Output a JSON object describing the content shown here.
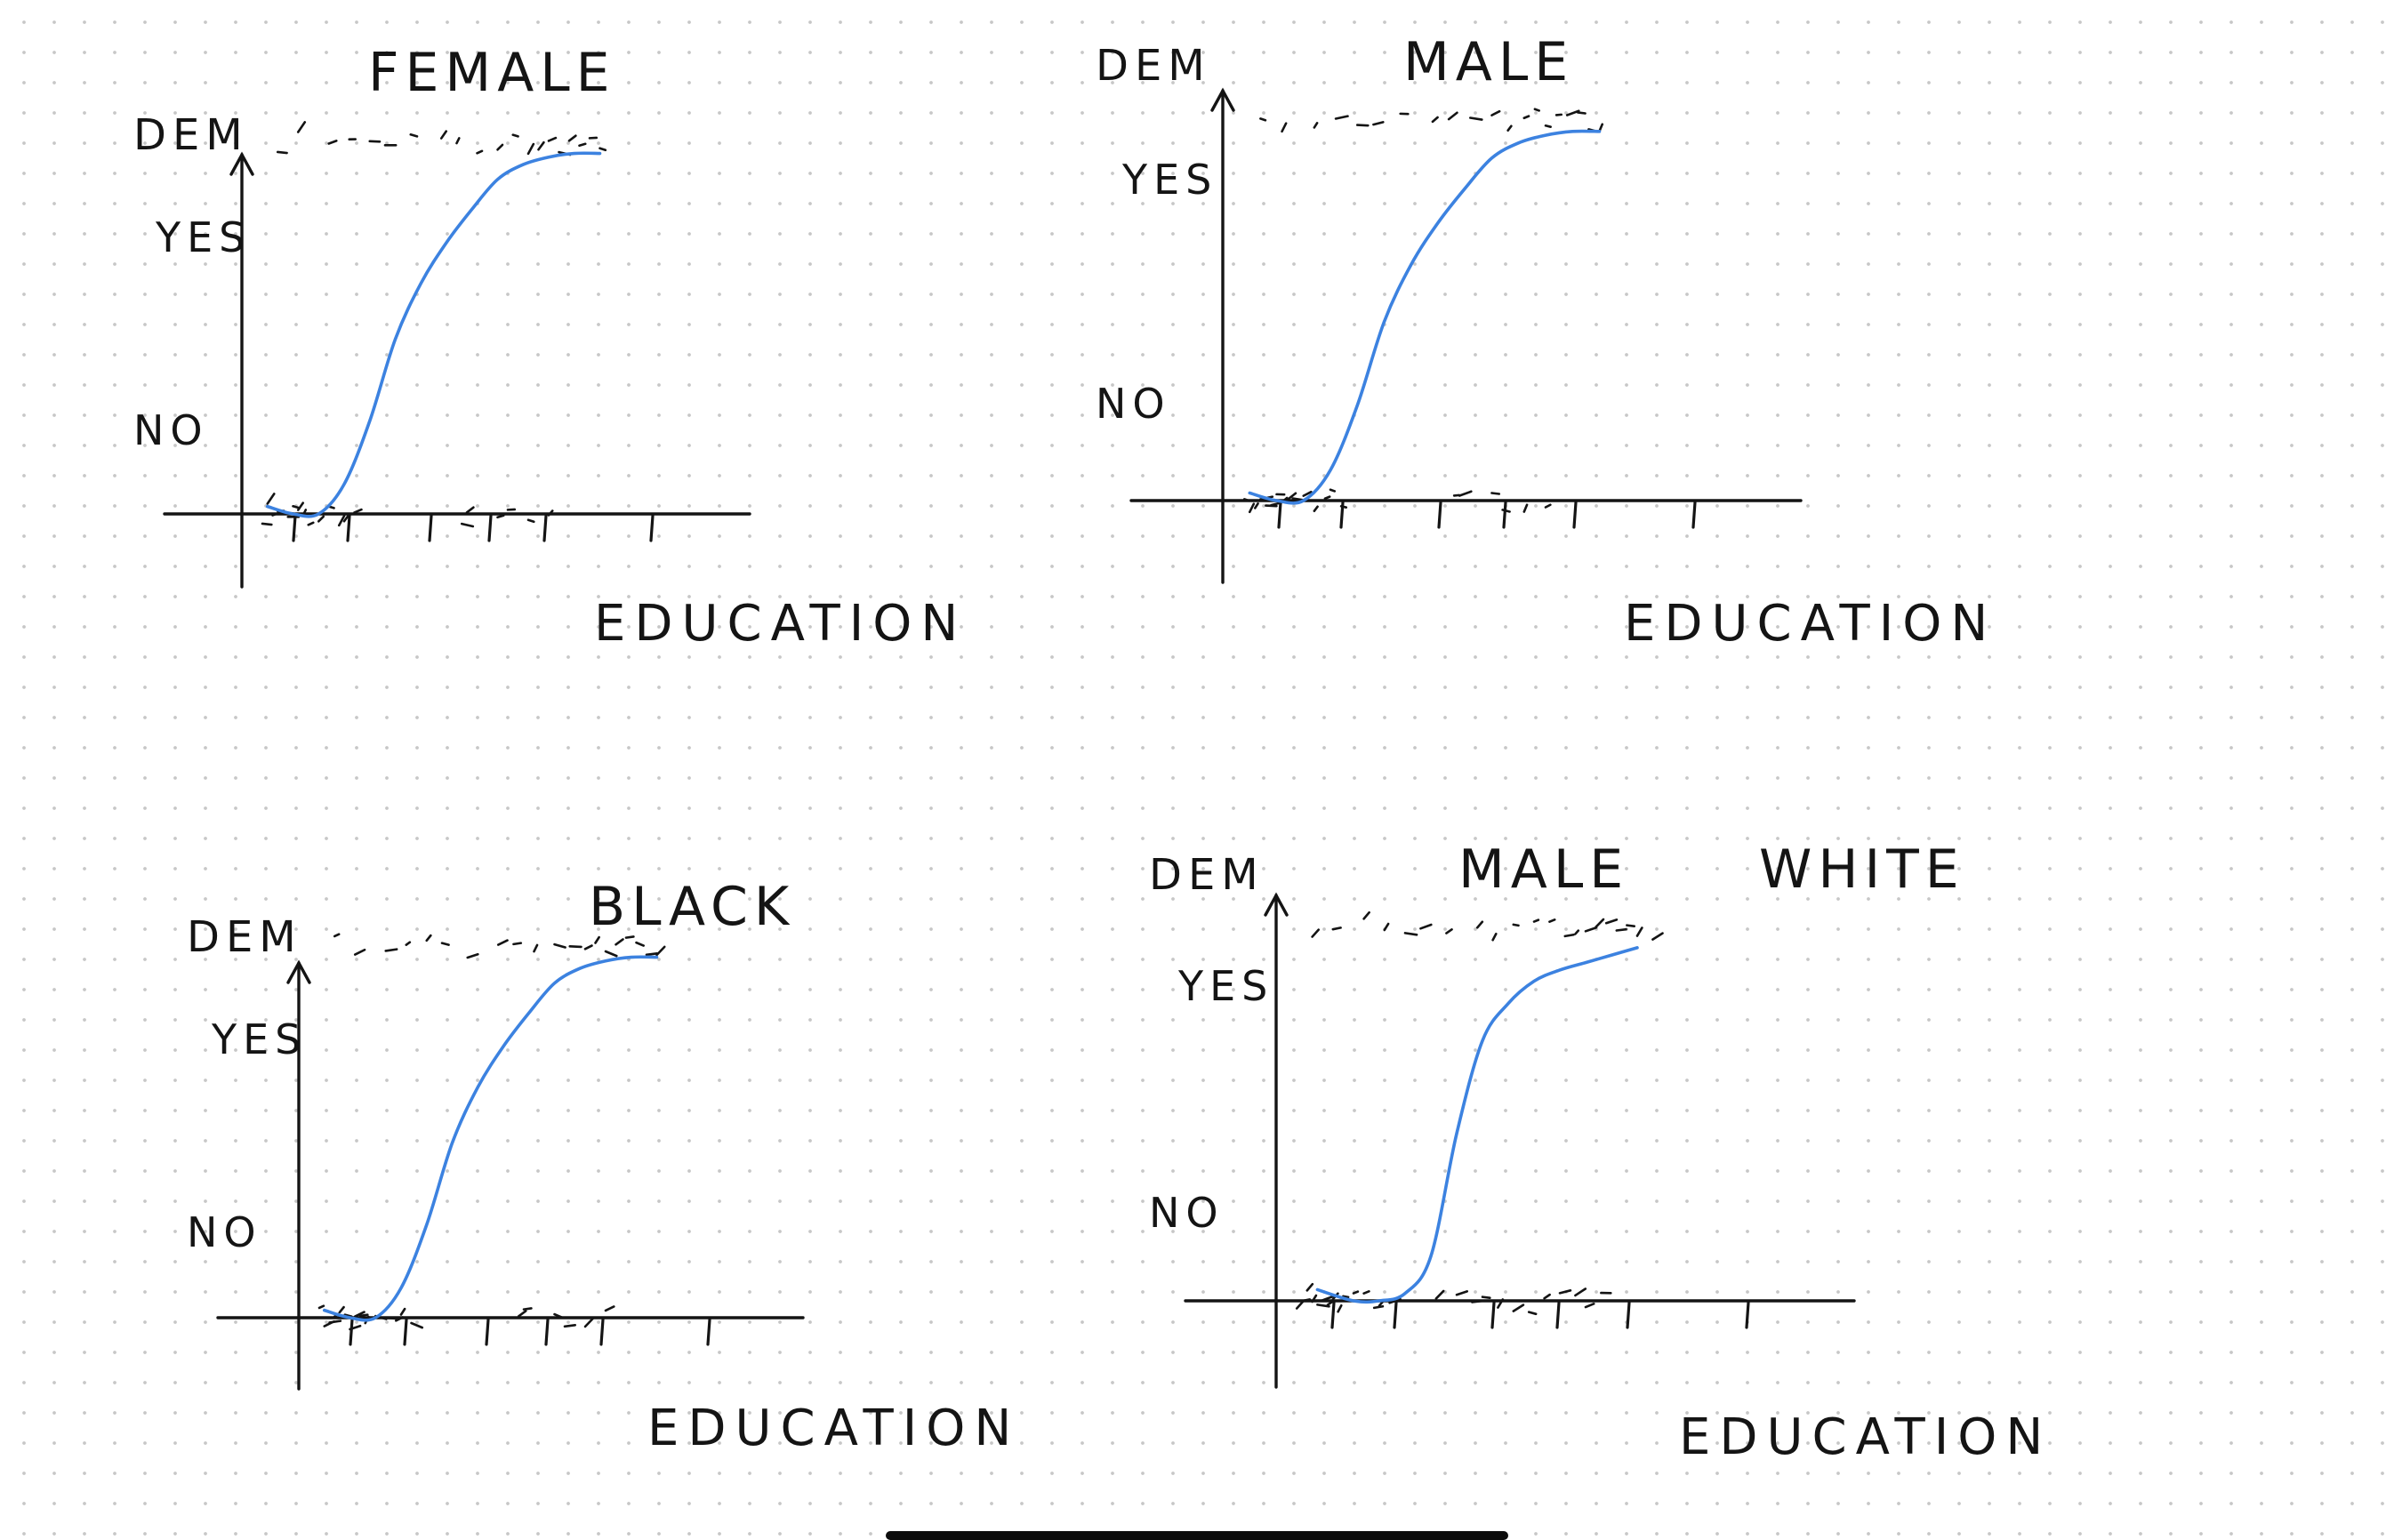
{
  "chart_data": [
    {
      "type": "scatter",
      "title": "FEMALE",
      "ylabel": "DEM",
      "xlabel": "EDUCATION",
      "ytick_labels": [
        "NO",
        "YES"
      ],
      "xticks": [
        1,
        2,
        3,
        4,
        5,
        6
      ],
      "xlim": [
        0,
        7.5
      ],
      "ylim": [
        -0.25,
        1.4
      ],
      "no_points": [
        0.4,
        0.5,
        0.6,
        0.7,
        0.8,
        0.9,
        1.0,
        1.1,
        1.2,
        1.3,
        1.5,
        1.7,
        1.9,
        2.0,
        2.2,
        4.3,
        4.4,
        5.0,
        5.2,
        5.6,
        6.0
      ],
      "yes_points": [
        0.7,
        1.1,
        1.7,
        2.1,
        2.5,
        2.8,
        3.3,
        3.9,
        4.2,
        4.6,
        5.0,
        5.3,
        5.6,
        5.8,
        6.0,
        6.2,
        6.4,
        6.6,
        6.8,
        7.0
      ],
      "fitted_curve": {
        "x": [
          0.5,
          1.0,
          1.5,
          2.0,
          2.5,
          3.0,
          3.5,
          4.0,
          4.5,
          5.0,
          5.5,
          6.0,
          6.5,
          7.0
        ],
        "y": [
          0.02,
          0.0,
          0.0,
          0.08,
          0.25,
          0.47,
          0.62,
          0.73,
          0.82,
          0.9,
          0.94,
          0.96,
          0.97,
          0.97
        ]
      }
    },
    {
      "type": "scatter",
      "title": "MALE",
      "ylabel": "DEM",
      "xlabel": "EDUCATION",
      "ytick_labels": [
        "NO",
        "YES"
      ],
      "xticks": [
        1,
        2,
        3,
        4,
        5,
        6
      ],
      "xlim": [
        0,
        7.5
      ],
      "ylim": [
        -0.25,
        1.4
      ],
      "no_points": [
        0.4,
        0.5,
        0.6,
        0.7,
        0.8,
        0.9,
        1.0,
        1.1,
        1.2,
        1.3,
        1.5,
        1.7,
        1.9,
        2.0,
        2.2,
        4.3,
        4.4,
        5.0,
        5.2,
        5.6,
        6.0
      ],
      "yes_points": [
        0.7,
        1.1,
        1.7,
        2.1,
        2.5,
        2.8,
        3.3,
        3.9,
        4.2,
        4.6,
        5.0,
        5.3,
        5.6,
        5.8,
        6.0,
        6.2,
        6.4,
        6.6,
        6.8,
        7.0
      ],
      "fitted_curve": {
        "x": [
          0.5,
          1.0,
          1.5,
          2.0,
          2.5,
          3.0,
          3.5,
          4.0,
          4.5,
          5.0,
          5.5,
          6.0,
          6.5,
          7.0
        ],
        "y": [
          0.02,
          0.0,
          0.0,
          0.08,
          0.25,
          0.47,
          0.62,
          0.73,
          0.82,
          0.9,
          0.94,
          0.96,
          0.97,
          0.97
        ]
      }
    },
    {
      "type": "scatter",
      "title": "BLACK",
      "ylabel": "DEM",
      "xlabel": "EDUCATION",
      "ytick_labels": [
        "NO",
        "YES"
      ],
      "xticks": [
        1,
        2,
        3,
        4,
        5,
        6
      ],
      "xlim": [
        0,
        7.5
      ],
      "ylim": [
        -0.25,
        1.4
      ],
      "no_points": [
        0.4,
        0.5,
        0.6,
        0.7,
        0.8,
        0.9,
        1.0,
        1.1,
        1.2,
        1.3,
        1.5,
        1.7,
        1.9,
        2.0,
        2.2,
        4.3,
        4.4,
        5.0,
        5.2,
        5.6,
        6.0
      ],
      "yes_points": [
        0.7,
        1.1,
        1.7,
        2.1,
        2.5,
        2.8,
        3.3,
        3.9,
        4.2,
        4.6,
        5.0,
        5.3,
        5.6,
        5.8,
        6.0,
        6.2,
        6.4,
        6.6,
        6.8,
        7.0
      ],
      "fitted_curve": {
        "x": [
          0.5,
          1.0,
          1.5,
          2.0,
          2.5,
          3.0,
          3.5,
          4.0,
          4.5,
          5.0,
          5.5,
          6.0,
          6.5,
          7.0
        ],
        "y": [
          0.02,
          0.0,
          0.0,
          0.08,
          0.25,
          0.47,
          0.62,
          0.73,
          0.82,
          0.9,
          0.94,
          0.96,
          0.97,
          0.97
        ]
      }
    },
    {
      "type": "scatter",
      "title": "MALE",
      "subtitle": "WHITE",
      "ylabel": "DEM",
      "xlabel": "EDUCATION",
      "ytick_labels": [
        "NO",
        "YES"
      ],
      "xticks": [
        1,
        2,
        3,
        4,
        5,
        6
      ],
      "xlim": [
        0,
        7.5
      ],
      "ylim": [
        -0.25,
        1.4
      ],
      "no_points": [
        0.4,
        0.5,
        0.6,
        0.7,
        0.8,
        0.9,
        1.0,
        1.1,
        1.2,
        1.3,
        1.5,
        1.7,
        1.9,
        2.0,
        2.2,
        3.1,
        3.5,
        3.8,
        4.0,
        4.3,
        4.6,
        4.9,
        5.2,
        5.5,
        5.8,
        6.0,
        6.3
      ],
      "yes_points": [
        0.7,
        1.1,
        1.7,
        2.1,
        2.5,
        2.8,
        3.3,
        3.9,
        4.2,
        4.6,
        5.0,
        5.3,
        5.6,
        5.8,
        6.0,
        6.2,
        6.4,
        6.6,
        6.8,
        7.0,
        7.3
      ],
      "fitted_curve": {
        "x": [
          0.8,
          1.5,
          2.0,
          2.5,
          3.0,
          3.5,
          4.0,
          4.5,
          5.0,
          5.5,
          6.0,
          6.5,
          7.0
        ],
        "y": [
          0.03,
          0.0,
          0.0,
          0.02,
          0.12,
          0.45,
          0.7,
          0.8,
          0.86,
          0.89,
          0.91,
          0.93,
          0.95
        ]
      }
    }
  ]
}
